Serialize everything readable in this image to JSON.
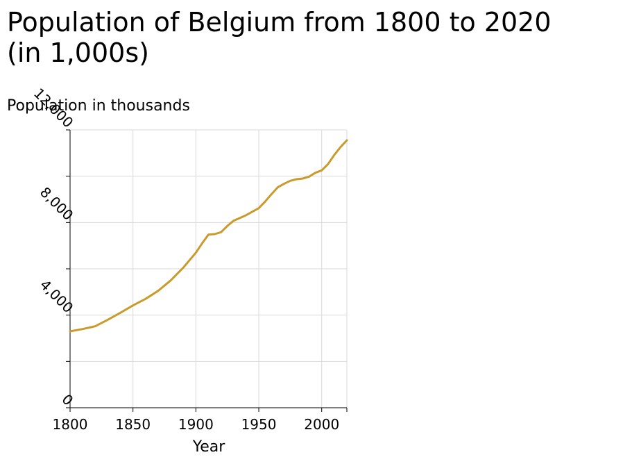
{
  "chart_data": {
    "type": "line",
    "title": "Population of Belgium from 1800 to 2020\n(in 1,000s)",
    "xlabel": "Year",
    "ylabel": "Population in thousands",
    "xlim": [
      1800,
      2020
    ],
    "ylim": [
      0,
      12000
    ],
    "x_ticks": [
      1800,
      1850,
      1900,
      1950,
      2000
    ],
    "x_tick_labels": [
      "1800",
      "1850",
      "1900",
      "1950",
      "2000"
    ],
    "y_ticks": [
      0,
      2000,
      4000,
      6000,
      8000,
      10000,
      12000
    ],
    "y_tick_labels": [
      "0",
      "",
      "4,000",
      "",
      "8,000",
      "",
      "12,000"
    ],
    "grid": true,
    "line_color": "#c89b2c",
    "series": [
      {
        "x": [
          1800,
          1810,
          1820,
          1830,
          1840,
          1850,
          1860,
          1870,
          1880,
          1890,
          1900,
          1905,
          1910,
          1915,
          1920,
          1925,
          1930,
          1940,
          1950,
          1955,
          1960,
          1965,
          1970,
          1975,
          1980,
          1985,
          1990,
          1995,
          2000,
          2005,
          2010,
          2015,
          2020
        ],
        "y": [
          3300,
          3400,
          3520,
          3800,
          4100,
          4420,
          4700,
          5050,
          5500,
          6050,
          6700,
          7100,
          7480,
          7500,
          7580,
          7850,
          8080,
          8320,
          8620,
          8900,
          9220,
          9520,
          9670,
          9800,
          9870,
          9900,
          9980,
          10150,
          10250,
          10520,
          10920,
          11260,
          11550
        ]
      }
    ]
  }
}
